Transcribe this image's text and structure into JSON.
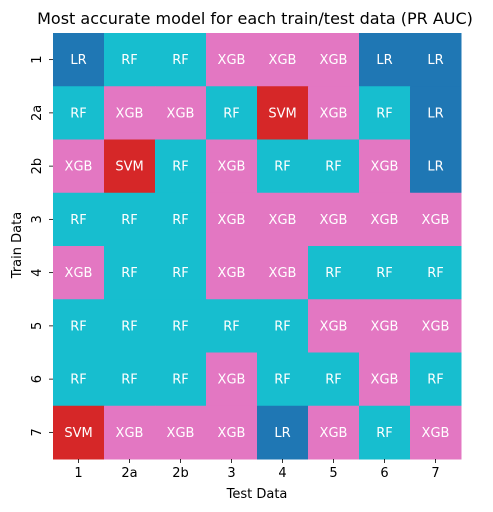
{
  "chart_data": {
    "type": "heatmap",
    "title": "Most accurate model for each train/test data (PR AUC)",
    "xlabel": "Test Data",
    "ylabel": "Train Data",
    "x_categories": [
      "1",
      "2a",
      "2b",
      "3",
      "4",
      "5",
      "6",
      "7"
    ],
    "y_categories": [
      "1",
      "2a",
      "2b",
      "3",
      "4",
      "5",
      "6",
      "7"
    ],
    "values": [
      [
        "LR",
        "RF",
        "RF",
        "XGB",
        "XGB",
        "XGB",
        "LR",
        "LR"
      ],
      [
        "RF",
        "XGB",
        "XGB",
        "RF",
        "SVM",
        "XGB",
        "RF",
        "LR"
      ],
      [
        "XGB",
        "SVM",
        "RF",
        "XGB",
        "RF",
        "RF",
        "XGB",
        "LR"
      ],
      [
        "RF",
        "RF",
        "RF",
        "XGB",
        "XGB",
        "XGB",
        "XGB",
        "XGB"
      ],
      [
        "XGB",
        "RF",
        "RF",
        "XGB",
        "XGB",
        "RF",
        "RF",
        "RF"
      ],
      [
        "RF",
        "RF",
        "RF",
        "RF",
        "RF",
        "XGB",
        "XGB",
        "XGB"
      ],
      [
        "RF",
        "RF",
        "RF",
        "XGB",
        "RF",
        "RF",
        "XGB",
        "RF"
      ],
      [
        "SVM",
        "XGB",
        "XGB",
        "XGB",
        "LR",
        "XGB",
        "RF",
        "XGB"
      ]
    ],
    "colors": {
      "LR": "#1f77b4",
      "RF": "#17becf",
      "XGB": "#e377c2",
      "SVM": "#d62728"
    },
    "grid": false,
    "legend": "none"
  }
}
